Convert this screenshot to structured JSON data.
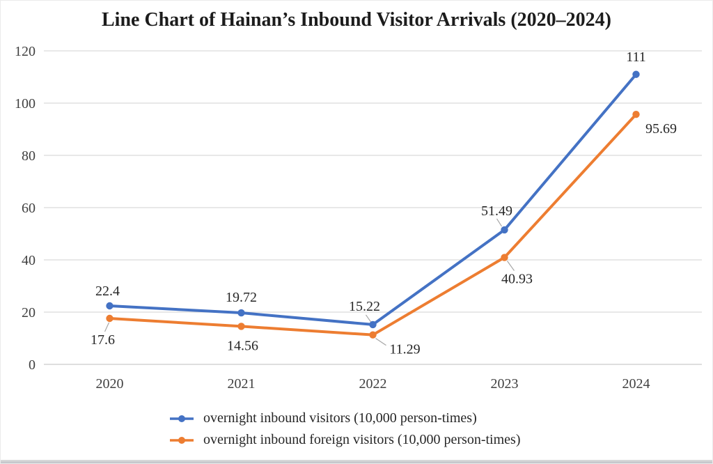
{
  "chart_data": {
    "type": "line",
    "title": "Line Chart of Hainan’s Inbound Visitor Arrivals (2020–2024)",
    "categories": [
      "2020",
      "2021",
      "2022",
      "2023",
      "2024"
    ],
    "series": [
      {
        "name": "overnight inbound visitors (10,000 person-times)",
        "color": "#4472C4",
        "values": [
          22.4,
          19.72,
          15.22,
          51.49,
          111
        ],
        "labels": [
          "22.4",
          "19.72",
          "15.22",
          "51.49",
          "111"
        ],
        "label_offsets": [
          [
            -3,
            -22
          ],
          [
            0,
            -23
          ],
          [
            -12,
            -27
          ],
          [
            -11,
            -28
          ],
          [
            0,
            -26
          ]
        ],
        "leaders": [
          null,
          null,
          [
            -3,
            -4,
            -10,
            -14
          ],
          [
            -4,
            -5,
            -11,
            -16
          ],
          null
        ]
      },
      {
        "name": "overnight inbound foreign visitors (10,000 person-times)",
        "color": "#ED7D31",
        "values": [
          17.6,
          14.56,
          11.29,
          40.93,
          95.69
        ],
        "labels": [
          "17.6",
          "14.56",
          "11.29",
          "40.93",
          "95.69"
        ],
        "label_offsets": [
          [
            -10,
            30
          ],
          [
            2,
            27
          ],
          [
            46,
            20
          ],
          [
            18,
            30
          ],
          [
            36,
            20
          ]
        ],
        "leaders": [
          [
            -1,
            6,
            -7,
            19
          ],
          null,
          [
            4,
            5,
            19,
            15
          ],
          [
            4,
            5,
            14,
            19
          ],
          null
        ]
      }
    ],
    "ylim": [
      0,
      120
    ],
    "yticks": [
      0,
      20,
      40,
      60,
      80,
      100,
      120
    ],
    "grid": true,
    "legend_position": "bottom-left",
    "gridline_color": "#D9D9D9",
    "zeroline_color": "#C9C9C9",
    "axis_label_color": "#404040",
    "data_label_color": "#262626",
    "leader_color": "#A6A6A6"
  }
}
